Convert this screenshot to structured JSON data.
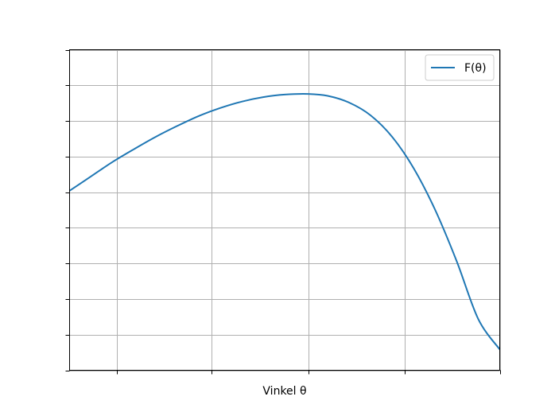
{
  "chart_data": {
    "type": "line",
    "title": "",
    "xlabel": "Vinkel θ",
    "ylabel": "",
    "xlim": [
      0,
      1
    ],
    "ylim": [
      0,
      1
    ],
    "grid": true,
    "legend_position": "top-right",
    "tick_labels_visible": false,
    "x_ticks": [
      0.11,
      0.33,
      0.555,
      0.78,
      1.0
    ],
    "y_ticks": [
      0.0,
      0.1111,
      0.2222,
      0.3333,
      0.4444,
      0.5556,
      0.6667,
      0.7778,
      0.8889,
      1.0
    ],
    "series": [
      {
        "name": "F(θ)",
        "color": "#1f77b4",
        "x": [
          0.0,
          0.05,
          0.1,
          0.15,
          0.2,
          0.25,
          0.3,
          0.35,
          0.4,
          0.45,
          0.5,
          0.555,
          0.6,
          0.65,
          0.7,
          0.75,
          0.8,
          0.85,
          0.9,
          0.95,
          1.0
        ],
        "y": [
          0.56,
          0.605,
          0.65,
          0.69,
          0.728,
          0.762,
          0.793,
          0.818,
          0.838,
          0.852,
          0.86,
          0.862,
          0.856,
          0.835,
          0.795,
          0.728,
          0.63,
          0.5,
          0.34,
          0.16,
          0.065
        ]
      }
    ]
  }
}
